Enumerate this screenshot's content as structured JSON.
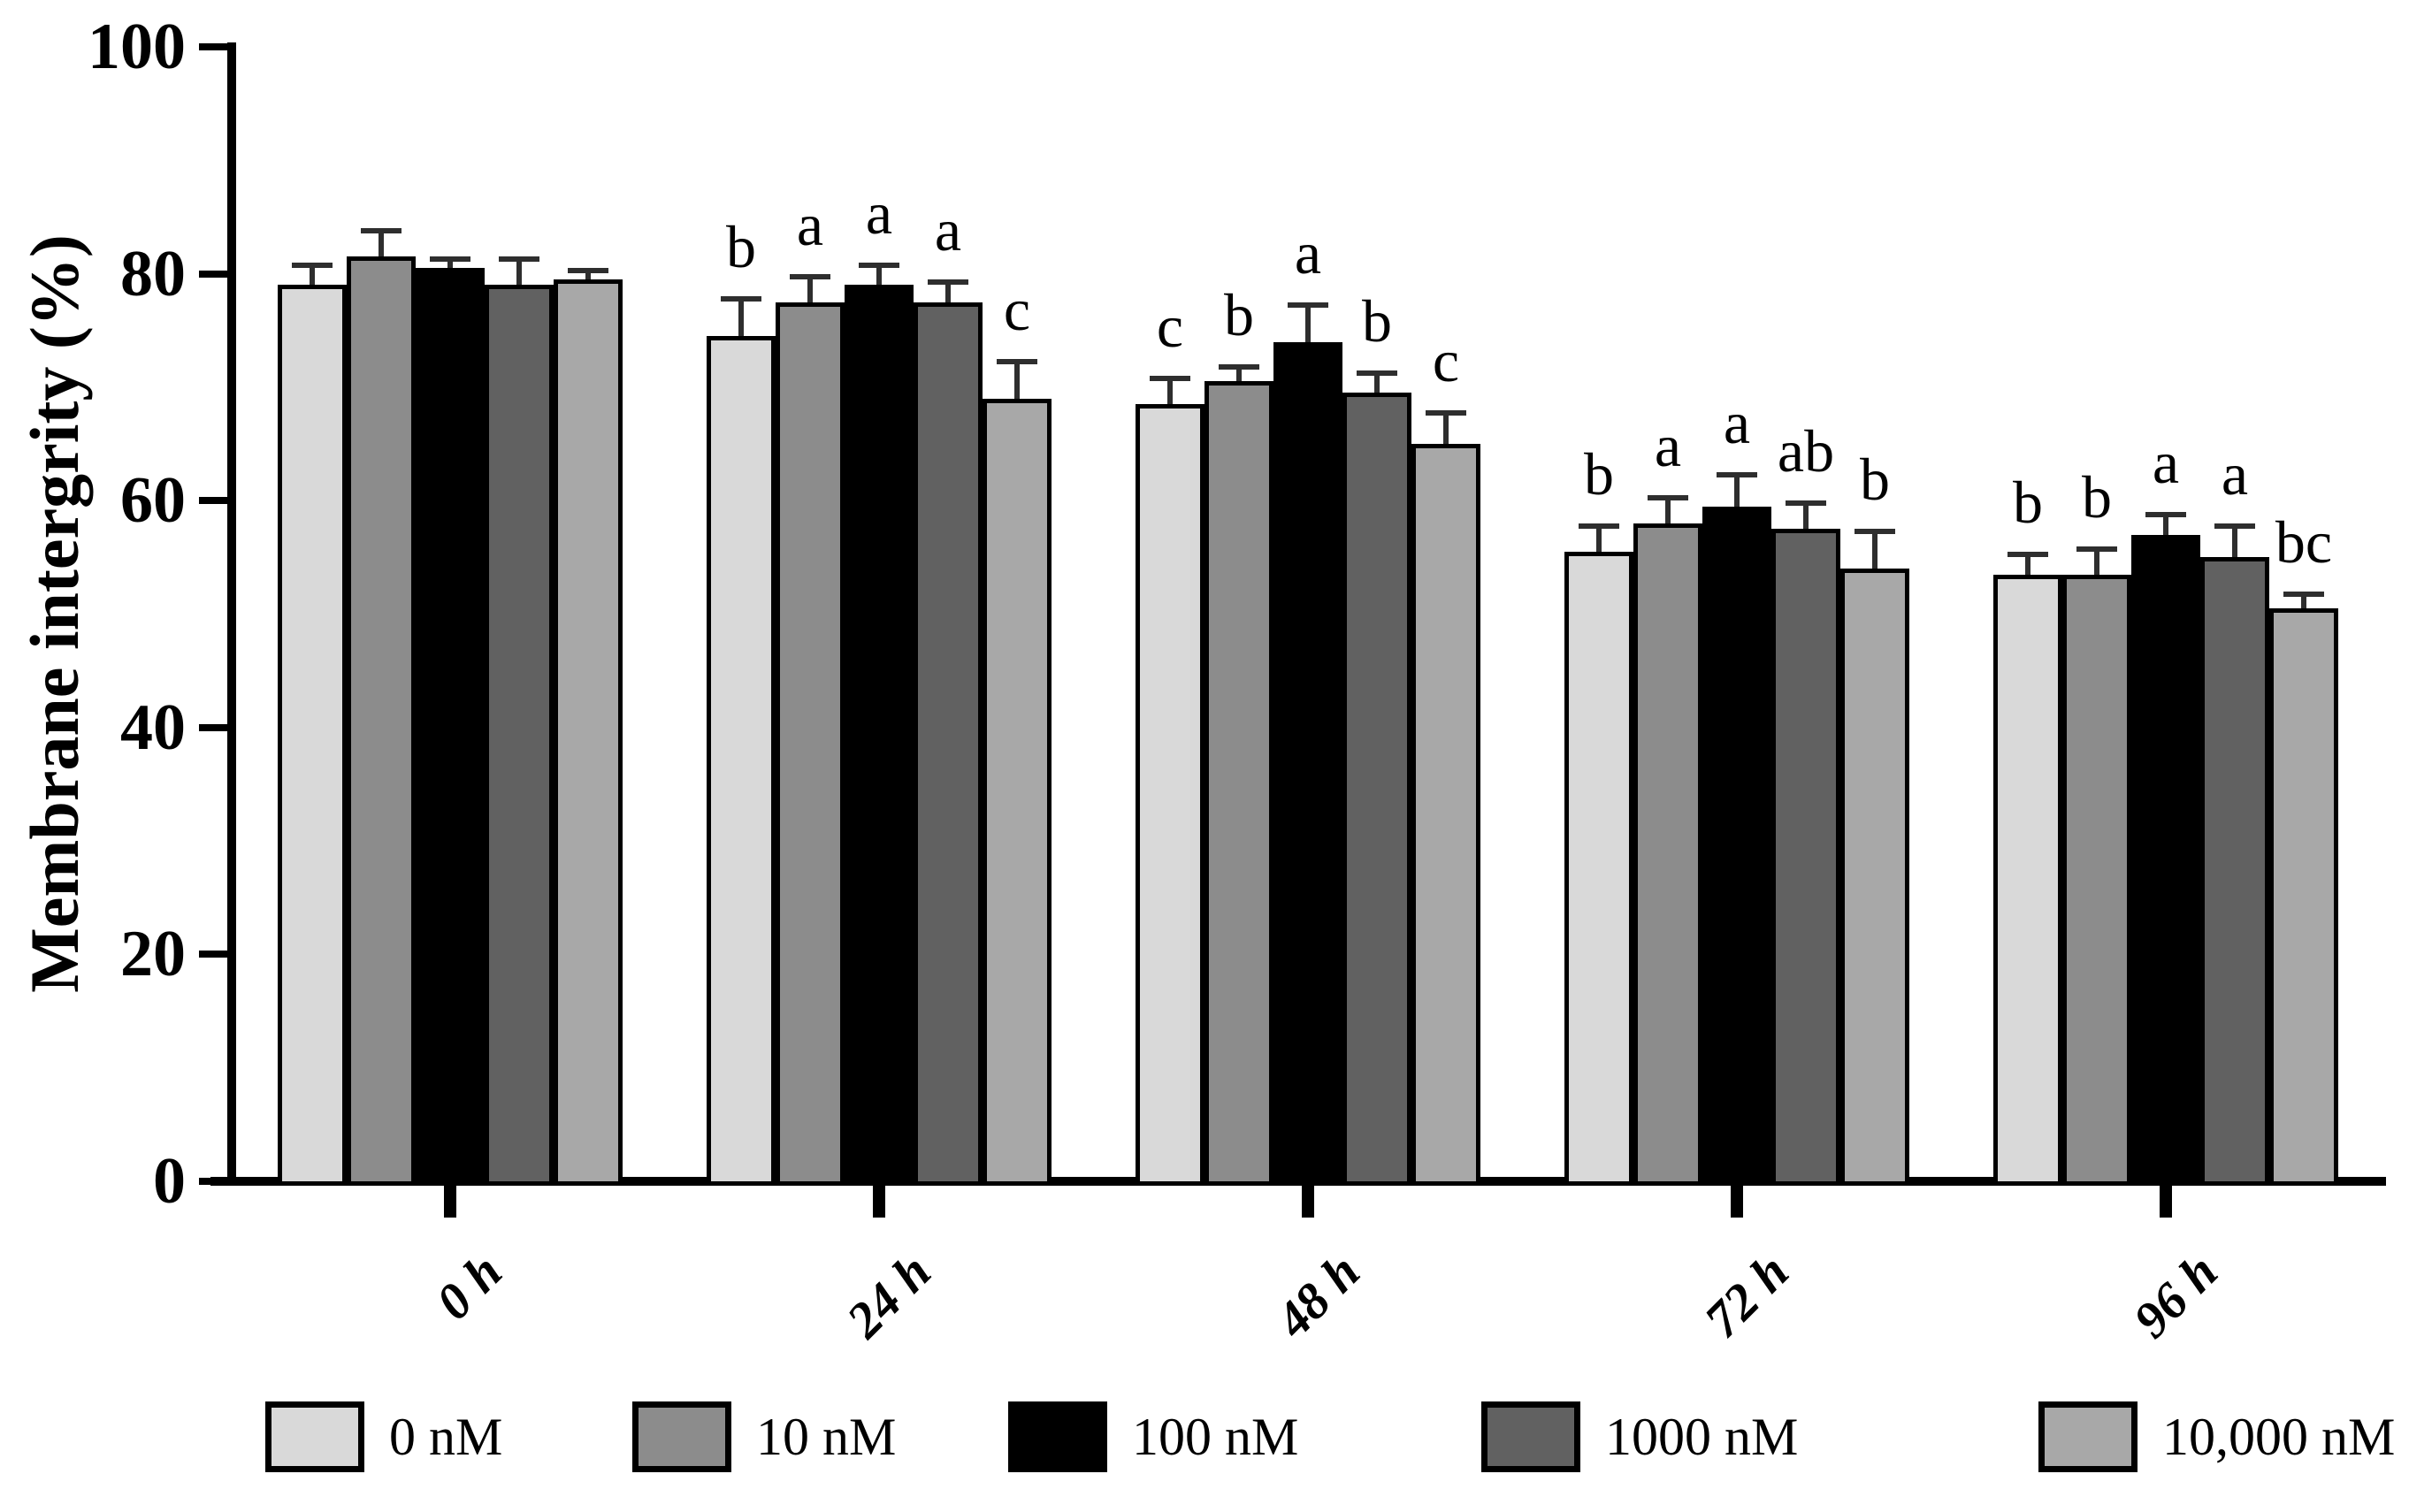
{
  "chart_data": {
    "type": "bar",
    "title": "",
    "xlabel": "",
    "ylabel": "Membrane intergrity (%)",
    "ylim": [
      0,
      100
    ],
    "yticks": [
      0,
      20,
      40,
      60,
      80,
      100
    ],
    "categories": [
      "0 h",
      "24 h",
      "48 h",
      "72 h",
      "96 h"
    ],
    "grid": false,
    "legend_position": "bottom",
    "error_bars": "upper SD whiskers with caps",
    "series": [
      {
        "name": "0 nM",
        "color": "#d9d9d9",
        "values": [
          79,
          74.5,
          68.5,
          55.5,
          53.5
        ],
        "errors": [
          2,
          3.5,
          2.5,
          2.5,
          2
        ],
        "letters": [
          "",
          "b",
          "c",
          "b",
          "b"
        ]
      },
      {
        "name": "10 nM",
        "color": "#8c8c8c",
        "values": [
          81.5,
          77.5,
          70.5,
          58,
          53.5
        ],
        "errors": [
          2.5,
          2.5,
          1.5,
          2.5,
          2.5
        ],
        "letters": [
          "",
          "a",
          "b",
          "a",
          "b"
        ]
      },
      {
        "name": "100 nM",
        "color": "#000000",
        "values": [
          80.5,
          79,
          74,
          59.5,
          57
        ],
        "errors": [
          1,
          2,
          3.5,
          3,
          2
        ],
        "letters": [
          "",
          "a",
          "a",
          "a",
          "a"
        ]
      },
      {
        "name": "1000 nM",
        "color": "#616161",
        "values": [
          79,
          77.5,
          69.5,
          57.5,
          55
        ],
        "errors": [
          2.5,
          2,
          2,
          2.5,
          3
        ],
        "letters": [
          "",
          "a",
          "b",
          "ab",
          "a"
        ]
      },
      {
        "name": "10,000 nM",
        "color": "#a8a8a8",
        "values": [
          79.5,
          69,
          65,
          54,
          50.5
        ],
        "errors": [
          1,
          3.5,
          3,
          3.5,
          1.5
        ],
        "letters": [
          "",
          "c",
          "c",
          "b",
          "bc"
        ]
      }
    ]
  }
}
